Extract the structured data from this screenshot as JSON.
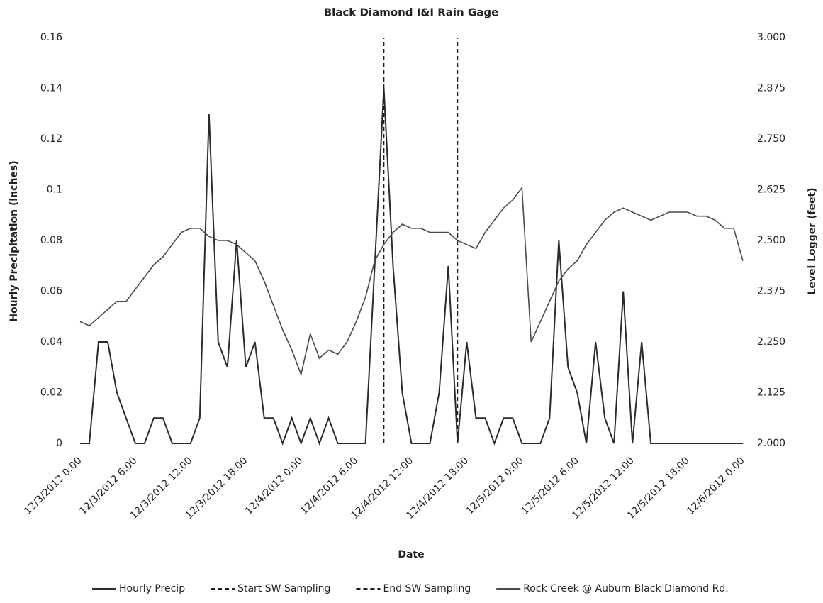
{
  "chart_data": {
    "type": "line",
    "title": "Black Diamond I&I Rain Gage",
    "x_label": "Date",
    "y_label": "Hourly Precipitation (inches)",
    "y2_label": "Level Logger (feet)",
    "categories": [
      "12/3/2012 0:00",
      null,
      null,
      null,
      null,
      null,
      "12/3/2012 6:00",
      null,
      null,
      null,
      null,
      null,
      "12/3/2012 12:00",
      null,
      null,
      null,
      null,
      null,
      "12/3/2012 18:00",
      null,
      null,
      null,
      null,
      null,
      "12/4/2012 0:00",
      null,
      null,
      null,
      null,
      null,
      "12/4/2012 6:00",
      null,
      null,
      null,
      null,
      null,
      "12/4/2012 12:00",
      null,
      null,
      null,
      null,
      null,
      "12/4/2012 18:00",
      null,
      null,
      null,
      null,
      null,
      "12/5/2012 0:00",
      null,
      null,
      null,
      null,
      null,
      "12/5/2012 6:00",
      null,
      null,
      null,
      null,
      null,
      "12/5/2012 12:00",
      null,
      null,
      null,
      null,
      null,
      "12/5/2012 18:00",
      null,
      null,
      null,
      null,
      null,
      "12/6/2012 0:00"
    ],
    "series": [
      {
        "name": "Hourly Precip",
        "color": "#2b2b2b",
        "type": "line",
        "axis": "y",
        "dashed": false,
        "values": [
          0,
          0,
          0.04,
          0.04,
          0.02,
          0.01,
          0,
          0,
          0.01,
          0.01,
          0,
          0,
          0,
          0.01,
          0.13,
          0.04,
          0.03,
          0.08,
          0.03,
          0.04,
          0.01,
          0.01,
          0,
          0.01,
          0,
          0.01,
          0,
          0.01,
          0,
          0,
          0,
          0,
          0.07,
          0.14,
          0.07,
          0.02,
          0,
          0,
          0,
          0.02,
          0.07,
          0,
          0.04,
          0.01,
          0.01,
          0,
          0.01,
          0.01,
          0,
          0,
          0,
          0.01,
          0.08,
          0.03,
          0.02,
          0,
          0.04,
          0.01,
          0,
          0.06,
          0,
          0.04,
          0,
          0,
          0,
          0,
          0,
          0,
          0,
          0,
          0,
          0,
          0
        ]
      },
      {
        "name": "Start SW Sampling",
        "color": "#1a1a1a",
        "type": "vline",
        "axis": "y",
        "dashed": true,
        "values": [
          null,
          null,
          null,
          null,
          null,
          null,
          null,
          null,
          null,
          null,
          null,
          null,
          null,
          null,
          null,
          null,
          null,
          null,
          null,
          null,
          null,
          null,
          null,
          null,
          null,
          null,
          null,
          null,
          null,
          null,
          null,
          null,
          null,
          0.16,
          null,
          null,
          null,
          null,
          null,
          null,
          null,
          null,
          null,
          null,
          null,
          null,
          null,
          null,
          null,
          null,
          null,
          null,
          null,
          null,
          null,
          null,
          null,
          null,
          null,
          null,
          null,
          null,
          null,
          null,
          null,
          null,
          null,
          null,
          null,
          null,
          null,
          null,
          null
        ]
      },
      {
        "name": "End SW Sampling",
        "color": "#1a1a1a",
        "type": "vline",
        "axis": "y",
        "dashed": true,
        "values": [
          null,
          null,
          null,
          null,
          null,
          null,
          null,
          null,
          null,
          null,
          null,
          null,
          null,
          null,
          null,
          null,
          null,
          null,
          null,
          null,
          null,
          null,
          null,
          null,
          null,
          null,
          null,
          null,
          null,
          null,
          null,
          null,
          null,
          null,
          null,
          null,
          null,
          null,
          null,
          null,
          null,
          0.16,
          null,
          null,
          null,
          null,
          null,
          null,
          null,
          null,
          null,
          null,
          null,
          null,
          null,
          null,
          null,
          null,
          null,
          null,
          null,
          null,
          null,
          null,
          null,
          null,
          null,
          null,
          null,
          null,
          null,
          null,
          null
        ]
      },
      {
        "name": "Rock Creek @ Auburn Black Diamond Rd.",
        "color": "#4a4a4a",
        "type": "line",
        "axis": "y2",
        "dashed": false,
        "values": [
          2.3,
          2.29,
          2.31,
          2.33,
          2.35,
          2.35,
          2.38,
          2.41,
          2.44,
          2.46,
          2.49,
          2.52,
          2.53,
          2.53,
          2.51,
          2.5,
          2.5,
          2.49,
          2.47,
          2.45,
          2.4,
          2.34,
          2.28,
          2.23,
          2.17,
          2.27,
          2.21,
          2.23,
          2.22,
          2.25,
          2.3,
          2.36,
          2.45,
          2.49,
          2.52,
          2.54,
          2.53,
          2.53,
          2.52,
          2.52,
          2.52,
          2.5,
          2.49,
          2.48,
          2.52,
          2.55,
          2.58,
          2.6,
          2.63,
          2.25,
          2.3,
          2.35,
          2.4,
          2.43,
          2.45,
          2.49,
          2.52,
          2.55,
          2.57,
          2.58,
          2.57,
          2.56,
          2.55,
          2.56,
          2.57,
          2.57,
          2.57,
          2.56,
          2.56,
          2.55,
          2.53,
          2.53,
          2.45
        ]
      }
    ],
    "ylim": [
      0,
      0.16
    ],
    "yticks": [
      0,
      0.02,
      0.04,
      0.06,
      0.08,
      0.1,
      0.12,
      0.14,
      0.16
    ],
    "y2lim": [
      2,
      3
    ],
    "y2ticks": [
      {
        "value": 2,
        "label": "2.000"
      },
      {
        "value": 2.125,
        "label": "2.125"
      },
      {
        "value": 2.25,
        "label": "2.250"
      },
      {
        "value": 2.375,
        "label": "2.375"
      },
      {
        "value": 2.5,
        "label": "2.500"
      },
      {
        "value": 2.625,
        "label": "2.625"
      },
      {
        "value": 2.75,
        "label": "2.750"
      },
      {
        "value": 2.875,
        "label": "2.875"
      },
      {
        "value": 3,
        "label": "3.000"
      }
    ],
    "grid": false,
    "legend": "bottom"
  }
}
